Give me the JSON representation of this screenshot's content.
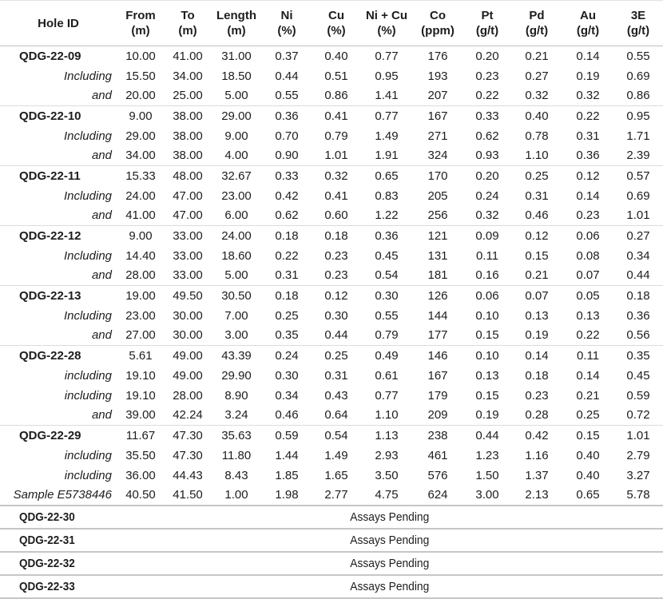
{
  "colors": {
    "text": "#1d1d1d",
    "separator_light": "#dcdcdc",
    "separator_dark": "#c6c6c6",
    "background": "#ffffff"
  },
  "table": {
    "columns": [
      {
        "label": "Hole ID",
        "unit": ""
      },
      {
        "label": "From",
        "unit": "(m)"
      },
      {
        "label": "To",
        "unit": "(m)"
      },
      {
        "label": "Length",
        "unit": "(m)"
      },
      {
        "label": "Ni",
        "unit": "(%)"
      },
      {
        "label": "Cu",
        "unit": "(%)"
      },
      {
        "label": "Ni + Cu",
        "unit": "(%)"
      },
      {
        "label": "Co",
        "unit": "(ppm)"
      },
      {
        "label": "Pt",
        "unit": "(g/t)"
      },
      {
        "label": "Pd",
        "unit": "(g/t)"
      },
      {
        "label": "Au",
        "unit": "(g/t)"
      },
      {
        "label": "3E",
        "unit": "(g/t)"
      }
    ],
    "sections": [
      {
        "rows": [
          {
            "label": "QDG-22-09",
            "style": "hole",
            "values": [
              "10.00",
              "41.00",
              "31.00",
              "0.37",
              "0.40",
              "0.77",
              "176",
              "0.20",
              "0.21",
              "0.14",
              "0.55"
            ]
          },
          {
            "label": "Including",
            "style": "sub",
            "values": [
              "15.50",
              "34.00",
              "18.50",
              "0.44",
              "0.51",
              "0.95",
              "193",
              "0.23",
              "0.27",
              "0.19",
              "0.69"
            ]
          },
          {
            "label": "and",
            "style": "sub",
            "values": [
              "20.00",
              "25.00",
              "5.00",
              "0.55",
              "0.86",
              "1.41",
              "207",
              "0.22",
              "0.32",
              "0.32",
              "0.86"
            ]
          }
        ]
      },
      {
        "rows": [
          {
            "label": "QDG-22-10",
            "style": "hole",
            "values": [
              "9.00",
              "38.00",
              "29.00",
              "0.36",
              "0.41",
              "0.77",
              "167",
              "0.33",
              "0.40",
              "0.22",
              "0.95"
            ]
          },
          {
            "label": "Including",
            "style": "sub",
            "values": [
              "29.00",
              "38.00",
              "9.00",
              "0.70",
              "0.79",
              "1.49",
              "271",
              "0.62",
              "0.78",
              "0.31",
              "1.71"
            ]
          },
          {
            "label": "and",
            "style": "sub",
            "values": [
              "34.00",
              "38.00",
              "4.00",
              "0.90",
              "1.01",
              "1.91",
              "324",
              "0.93",
              "1.10",
              "0.36",
              "2.39"
            ]
          }
        ]
      },
      {
        "rows": [
          {
            "label": "QDG-22-11",
            "style": "hole",
            "values": [
              "15.33",
              "48.00",
              "32.67",
              "0.33",
              "0.32",
              "0.65",
              "170",
              "0.20",
              "0.25",
              "0.12",
              "0.57"
            ]
          },
          {
            "label": "Including",
            "style": "sub",
            "values": [
              "24.00",
              "47.00",
              "23.00",
              "0.42",
              "0.41",
              "0.83",
              "205",
              "0.24",
              "0.31",
              "0.14",
              "0.69"
            ]
          },
          {
            "label": "and",
            "style": "sub",
            "values": [
              "41.00",
              "47.00",
              "6.00",
              "0.62",
              "0.60",
              "1.22",
              "256",
              "0.32",
              "0.46",
              "0.23",
              "1.01"
            ]
          }
        ]
      },
      {
        "rows": [
          {
            "label": "QDG-22-12",
            "style": "hole",
            "values": [
              "9.00",
              "33.00",
              "24.00",
              "0.18",
              "0.18",
              "0.36",
              "121",
              "0.09",
              "0.12",
              "0.06",
              "0.27"
            ]
          },
          {
            "label": "Including",
            "style": "sub",
            "values": [
              "14.40",
              "33.00",
              "18.60",
              "0.22",
              "0.23",
              "0.45",
              "131",
              "0.11",
              "0.15",
              "0.08",
              "0.34"
            ]
          },
          {
            "label": "and",
            "style": "sub",
            "values": [
              "28.00",
              "33.00",
              "5.00",
              "0.31",
              "0.23",
              "0.54",
              "181",
              "0.16",
              "0.21",
              "0.07",
              "0.44"
            ]
          }
        ]
      },
      {
        "rows": [
          {
            "label": "QDG-22-13",
            "style": "hole",
            "values": [
              "19.00",
              "49.50",
              "30.50",
              "0.18",
              "0.12",
              "0.30",
              "126",
              "0.06",
              "0.07",
              "0.05",
              "0.18"
            ]
          },
          {
            "label": "Including",
            "style": "sub",
            "values": [
              "23.00",
              "30.00",
              "7.00",
              "0.25",
              "0.30",
              "0.55",
              "144",
              "0.10",
              "0.13",
              "0.13",
              "0.36"
            ]
          },
          {
            "label": "and",
            "style": "sub",
            "values": [
              "27.00",
              "30.00",
              "3.00",
              "0.35",
              "0.44",
              "0.79",
              "177",
              "0.15",
              "0.19",
              "0.22",
              "0.56"
            ]
          }
        ]
      },
      {
        "rows": [
          {
            "label": "QDG-22-28",
            "style": "hole",
            "values": [
              "5.61",
              "49.00",
              "43.39",
              "0.24",
              "0.25",
              "0.49",
              "146",
              "0.10",
              "0.14",
              "0.11",
              "0.35"
            ]
          },
          {
            "label": "including",
            "style": "sub",
            "values": [
              "19.10",
              "49.00",
              "29.90",
              "0.30",
              "0.31",
              "0.61",
              "167",
              "0.13",
              "0.18",
              "0.14",
              "0.45"
            ]
          },
          {
            "label": "including",
            "style": "sub",
            "values": [
              "19.10",
              "28.00",
              "8.90",
              "0.34",
              "0.43",
              "0.77",
              "179",
              "0.15",
              "0.23",
              "0.21",
              "0.59"
            ]
          },
          {
            "label": "and",
            "style": "sub",
            "values": [
              "39.00",
              "42.24",
              "3.24",
              "0.46",
              "0.64",
              "1.10",
              "209",
              "0.19",
              "0.28",
              "0.25",
              "0.72"
            ]
          }
        ]
      },
      {
        "rows": [
          {
            "label": "QDG-22-29",
            "style": "hole",
            "values": [
              "11.67",
              "47.30",
              "35.63",
              "0.59",
              "0.54",
              "1.13",
              "238",
              "0.44",
              "0.42",
              "0.15",
              "1.01"
            ]
          },
          {
            "label": "including",
            "style": "sub",
            "values": [
              "35.50",
              "47.30",
              "11.80",
              "1.44",
              "1.49",
              "2.93",
              "461",
              "1.23",
              "1.16",
              "0.40",
              "2.79"
            ]
          },
          {
            "label": "including",
            "style": "sub",
            "values": [
              "36.00",
              "44.43",
              "8.43",
              "1.85",
              "1.65",
              "3.50",
              "576",
              "1.50",
              "1.37",
              "0.40",
              "3.27"
            ]
          },
          {
            "label": "Sample E5738446",
            "style": "sub",
            "values": [
              "40.50",
              "41.50",
              "1.00",
              "1.98",
              "2.77",
              "4.75",
              "624",
              "3.00",
              "2.13",
              "0.65",
              "5.78"
            ]
          }
        ]
      }
    ],
    "pending_rows": [
      {
        "hole_id": "QDG-22-30",
        "status": "Assays Pending"
      },
      {
        "hole_id": "QDG-22-31",
        "status": "Assays Pending"
      },
      {
        "hole_id": "QDG-22-32",
        "status": "Assays Pending"
      },
      {
        "hole_id": "QDG-22-33",
        "status": "Assays Pending"
      }
    ]
  }
}
